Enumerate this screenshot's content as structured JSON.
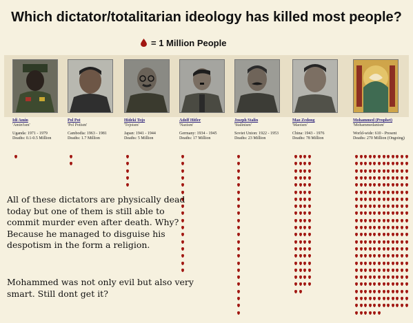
{
  "title": "Which dictator/totalitarian ideology has killed most people?",
  "legend": {
    "icon": "blood-drop-icon",
    "label": "= 1 Million People",
    "drop_color": "#a11712"
  },
  "dictators": [
    {
      "name": "Idi Amin",
      "ideology": "'Amin'ism'",
      "region_years": "Uganda: 1971 - 1979",
      "deaths": "Deaths: 0.1-0.5 Million",
      "drop_count": 1,
      "drop_rows": 1
    },
    {
      "name": "Pol Pot",
      "ideology": "'Pol Potism'",
      "region_years": "Cambodia: 1963 - 1981",
      "deaths": "Deaths: 1.7 Million",
      "drop_count": 2,
      "drop_rows": 2
    },
    {
      "name": "Hideki Tojo",
      "ideology": "'Tojoism'",
      "region_years": "Japan: 1941 - 1944",
      "deaths": "Deaths: 5 Million",
      "drop_count": 5,
      "drop_rows": 5
    },
    {
      "name": "Adolf Hitler",
      "ideology": "'Nazism'",
      "region_years": "Germany: 1934 - 1945",
      "deaths": "Deaths: 17 Million",
      "drop_count": 17,
      "drop_rows": 17
    },
    {
      "name": "Joseph Stalin",
      "ideology": "'Stalinism'",
      "region_years": "Soviet Union: 1922 - 1953",
      "deaths": "Deaths: 23 Million",
      "drop_count": 23,
      "drop_rows": 23
    },
    {
      "name": "Mao Zedong",
      "ideology": "'Maoism'",
      "region_years": "China: 1943 - 1976",
      "deaths": "Deaths: 78 Million",
      "drop_count": 78,
      "drop_rows": 20
    },
    {
      "name": "Mohammed (Prophet)",
      "ideology": "'Mohammedanism'",
      "region_years": "World-wide: 610 - Present",
      "deaths": "Deaths: 270 Million (Ongoing)",
      "drop_count": 270,
      "drop_rows": 23
    }
  ],
  "commentary": "All of these dictators are physically dead today but one of them is still able to commit murder even after death. Why? Because he managed to disguise his despotism in the form a religion.",
  "closing": "Mohammed was not only evil but also very smart. Still dont get it?"
}
